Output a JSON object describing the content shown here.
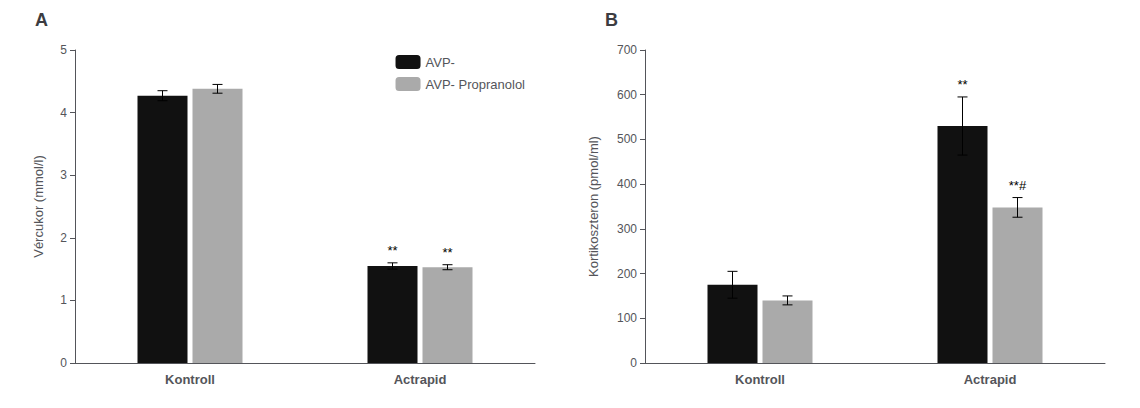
{
  "chart_data": [
    {
      "type": "bar",
      "title": "A",
      "ylabel": "Vércukor (mmol/l)",
      "categories": [
        "Kontroll",
        "Actrapid"
      ],
      "series": [
        {
          "name": "AVP-",
          "color": "#111111",
          "values": [
            4.27,
            1.55
          ],
          "errors": [
            0.08,
            0.05
          ]
        },
        {
          "name": "AVP- Propranolol",
          "color": "#aaaaaa",
          "values": [
            4.38,
            1.53
          ],
          "errors": [
            0.07,
            0.04
          ]
        }
      ],
      "ylim": [
        0,
        5
      ],
      "yticks": [
        0,
        1,
        2,
        3,
        4,
        5
      ],
      "grid": false,
      "legend": "upper right",
      "annotations": [
        {
          "text": "**",
          "category": "Actrapid",
          "series": "AVP-"
        },
        {
          "text": "**",
          "category": "Actrapid",
          "series": "AVP- Propranolol"
        }
      ]
    },
    {
      "type": "bar",
      "title": "B",
      "ylabel": "Kortikoszteron (pmol/ml)",
      "categories": [
        "Kontroll",
        "Actrapid"
      ],
      "series": [
        {
          "name": "AVP-",
          "color": "#111111",
          "values": [
            175,
            530
          ],
          "errors": [
            30,
            65
          ]
        },
        {
          "name": "AVP- Propranolol",
          "color": "#aaaaaa",
          "values": [
            140,
            348
          ],
          "errors": [
            10,
            22
          ]
        }
      ],
      "ylim": [
        0,
        700
      ],
      "yticks": [
        0,
        100,
        200,
        300,
        400,
        500,
        600,
        700
      ],
      "grid": false,
      "annotations": [
        {
          "text": "**",
          "category": "Actrapid",
          "series": "AVP-"
        },
        {
          "text": "**#",
          "category": "Actrapid",
          "series": "AVP- Propranolol"
        }
      ]
    }
  ]
}
